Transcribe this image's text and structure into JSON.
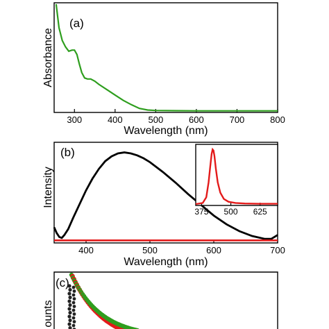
{
  "chart_data": [
    {
      "panel_label": "(a)",
      "type": "line",
      "xlabel": "Wavelength (nm)",
      "ylabel": "Absorbance",
      "xlim": [
        250,
        800
      ],
      "ylim": [
        0,
        1
      ],
      "xticks": [
        "300",
        "400",
        "500",
        "600",
        "700",
        "800"
      ],
      "xtick_values": [
        300,
        400,
        500,
        600,
        700,
        800
      ],
      "color": "#2e9e1e",
      "series": [
        {
          "x": [
            255,
            262,
            270,
            278,
            286,
            294,
            300,
            306,
            312,
            318,
            325,
            332,
            340,
            350,
            360,
            380,
            400,
            420,
            440,
            460,
            480,
            500,
            550,
            600,
            650,
            700,
            750,
            800
          ],
          "y": [
            1.0,
            0.78,
            0.66,
            0.6,
            0.56,
            0.57,
            0.57,
            0.53,
            0.44,
            0.36,
            0.31,
            0.3,
            0.3,
            0.28,
            0.25,
            0.2,
            0.15,
            0.1,
            0.06,
            0.025,
            0.01,
            0.005,
            0.003,
            0.002,
            0.002,
            0.002,
            0.002,
            0.002
          ]
        }
      ]
    },
    {
      "panel_label": "(b)",
      "type": "line",
      "xlabel": "Wavelength (nm)",
      "ylabel": "Intensity",
      "xlim": [
        350,
        700
      ],
      "ylim": [
        0,
        1
      ],
      "xticks": [
        "400",
        "500",
        "600",
        "700"
      ],
      "xtick_values": [
        400,
        500,
        600,
        700
      ],
      "series": [
        {
          "color": "#000000",
          "x": [
            350,
            354,
            358,
            362,
            366,
            372,
            380,
            390,
            400,
            410,
            420,
            430,
            440,
            450,
            460,
            470,
            480,
            490,
            500,
            520,
            540,
            560,
            580,
            600,
            620,
            640,
            660,
            680,
            690,
            700
          ],
          "y": [
            0.14,
            0.08,
            0.04,
            0.03,
            0.06,
            0.12,
            0.24,
            0.38,
            0.52,
            0.64,
            0.74,
            0.82,
            0.87,
            0.9,
            0.91,
            0.9,
            0.88,
            0.85,
            0.81,
            0.71,
            0.6,
            0.48,
            0.37,
            0.26,
            0.17,
            0.1,
            0.05,
            0.02,
            0.02,
            0.06
          ]
        },
        {
          "color": "#e31a1a",
          "x": [
            350,
            400,
            500,
            600,
            700
          ],
          "y": [
            0.005,
            0.005,
            0.005,
            0.005,
            0.005
          ]
        }
      ],
      "inset": {
        "xlim": [
          350,
          700
        ],
        "ylim": [
          0,
          1
        ],
        "xticks": [
          "375",
          "500",
          "625"
        ],
        "xtick_values": [
          375,
          500,
          625
        ],
        "color": "#e31a1a",
        "x": [
          350,
          380,
          395,
          405,
          412,
          418,
          422,
          426,
          430,
          436,
          444,
          455,
          470,
          490,
          520,
          560,
          620,
          700
        ],
        "y": [
          0.0,
          0.02,
          0.12,
          0.38,
          0.66,
          0.88,
          0.96,
          0.94,
          0.84,
          0.62,
          0.38,
          0.2,
          0.09,
          0.04,
          0.02,
          0.01,
          0.005,
          0.005
        ]
      }
    },
    {
      "panel_label": "(c)",
      "type": "scatter",
      "ylabel": "ounts",
      "series": [
        {
          "color": "#2e9e1e"
        },
        {
          "color": "#e31a1a"
        },
        {
          "color": "#222222"
        }
      ]
    }
  ]
}
